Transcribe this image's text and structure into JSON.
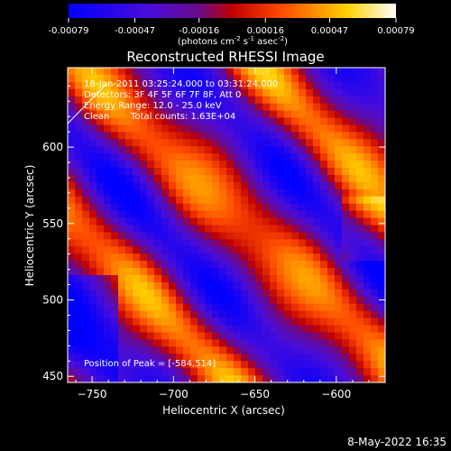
{
  "colorbar": {
    "tick_labels": [
      "-0.00079",
      "-0.00047",
      "-0.00016",
      "0.00016",
      "0.00047",
      "0.00079"
    ],
    "units": "(photons cm",
    "units_exp1": "-2",
    "units_mid": " s",
    "units_exp2": "-1",
    "units_tail": " asec",
    "units_exp3": "-2",
    "units_close": ")",
    "range": [
      -0.00079,
      0.00079
    ]
  },
  "chart_data": {
    "type": "heatmap",
    "title": "Reconstructed RHESSI Image",
    "xlabel": "Heliocentric X (arcsec)",
    "ylabel": "Heliocentric Y (arcsec)",
    "xlim": [
      -765,
      -570
    ],
    "ylim": [
      446,
      652
    ],
    "x_ticks": [
      -750,
      -700,
      -650,
      -600
    ],
    "y_ticks": [
      450,
      500,
      550,
      600
    ],
    "x_tick_labels": [
      "−750",
      "−700",
      "−650",
      "−600"
    ],
    "y_tick_labels": [
      "450",
      "500",
      "550",
      "600"
    ],
    "annotations": [
      "18-Jan-2011 03:25:24.000 to 03:31:24.000",
      "Detectors: 3F 4F 5F 6F 7F 8F, Att 0",
      "Energy Range: 12.0 - 25.0 keV",
      "Clean",
      "Total counts: 1.63E+04",
      "Position of Peak = [-584,514]"
    ],
    "peak": {
      "x": -584,
      "y": 514
    },
    "colormap": "blue-purple-red-yellow-white",
    "grid": false
  },
  "footer": {
    "timestamp": "8-May-2022 16:35"
  }
}
